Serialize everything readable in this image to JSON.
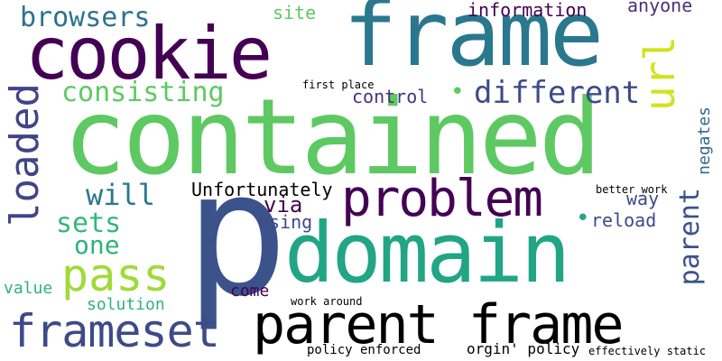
{
  "word_cloud": {
    "background": "#ffffff",
    "words": [
      {
        "id": "contained",
        "text": "contained",
        "color": "#5ec962"
      },
      {
        "id": "p",
        "text": "p",
        "color": "#3b528b"
      },
      {
        "id": "domain",
        "text": "domain",
        "color": "#21a585"
      },
      {
        "id": "frame",
        "text": "frame",
        "color": "#2a788e"
      },
      {
        "id": "cookie",
        "text": "cookie",
        "color": "#440154"
      },
      {
        "id": "parent-frame",
        "text": "parent frame",
        "color": "#22a884"
      },
      {
        "id": "problem",
        "text": "problem",
        "color": "#440154"
      },
      {
        "id": "frameset",
        "text": "frameset",
        "color": "#3e4a89"
      },
      {
        "id": "pass",
        "text": "pass",
        "color": "#a0da39"
      },
      {
        "id": "loaded",
        "text": "loaded",
        "color": "#414487"
      },
      {
        "id": "url",
        "text": "url",
        "color": "#d2e21b"
      },
      {
        "id": "different",
        "text": "different",
        "color": "#3e4a89"
      },
      {
        "id": "consisting",
        "text": "consisting",
        "color": "#5ec962"
      },
      {
        "id": "browsers",
        "text": "browsers",
        "color": "#2c728e"
      },
      {
        "id": "will",
        "text": "will",
        "color": "#2a788e"
      },
      {
        "id": "sets",
        "text": "sets",
        "color": "#35b779"
      },
      {
        "id": "one",
        "text": "one",
        "color": "#2db27d"
      },
      {
        "id": "parent",
        "text": "parent",
        "color": "#3b528b"
      },
      {
        "id": "unfortunately",
        "text": "Unfortunately",
        "color": "#a0da39"
      },
      {
        "id": "via",
        "text": "via",
        "color": "#440154"
      },
      {
        "id": "using",
        "text": "using",
        "color": "#3e4a89"
      },
      {
        "id": "information",
        "text": "information",
        "color": "#440154"
      },
      {
        "id": "anyone",
        "text": "anyone",
        "color": "#46337e"
      },
      {
        "id": "site",
        "text": "site",
        "color": "#5ec962"
      },
      {
        "id": "control",
        "text": "control",
        "color": "#46337e"
      },
      {
        "id": "negates",
        "text": "negates",
        "color": "#31688e"
      },
      {
        "id": "way",
        "text": "way",
        "color": "#3e4a89"
      },
      {
        "id": "reload",
        "text": "reload",
        "color": "#3e4a89"
      },
      {
        "id": "value",
        "text": "value",
        "color": "#2db27d"
      },
      {
        "id": "solution",
        "text": "solution",
        "color": "#2db27d"
      },
      {
        "id": "come",
        "text": "come",
        "color": "#440154"
      },
      {
        "id": "work-around",
        "text": "work around",
        "color": "#3b528b"
      },
      {
        "id": "better-work",
        "text": "better work",
        "color": "#440154"
      },
      {
        "id": "first-place",
        "text": "first place",
        "color": "#b5de2b"
      },
      {
        "id": "policy-enforced",
        "text": "policy enforced",
        "color": "#46337e"
      },
      {
        "id": "origin-policy",
        "text": "orgin' policy",
        "color": "#2a788e"
      },
      {
        "id": "effectively-static",
        "text": "effectively static",
        "color": "#2a788e"
      },
      {
        "id": "dot-1",
        "text": "•",
        "color": "#5ec962"
      },
      {
        "id": "dot-2",
        "text": "•",
        "color": "#21a585"
      }
    ]
  }
}
